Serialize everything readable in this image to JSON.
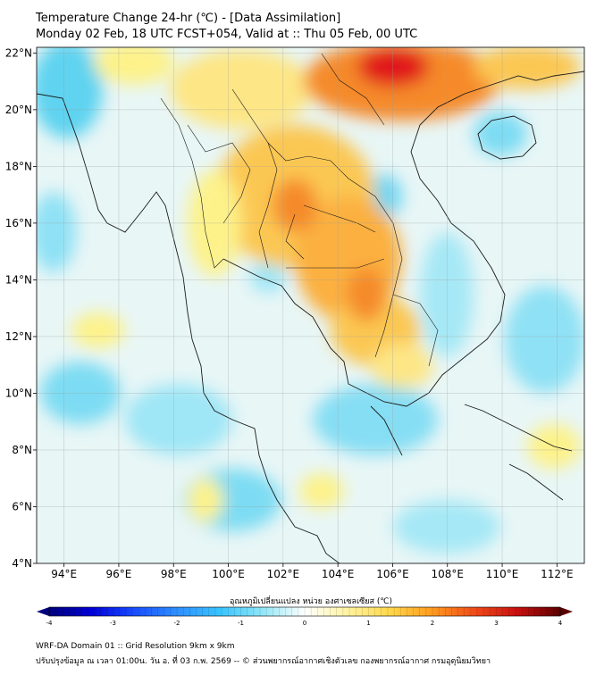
{
  "header": {
    "title": "Temperature Change 24-hr (℃) - [Data Assimilation]",
    "subtitle": "Monday 02 Feb, 18 UTC FCST+054, Valid at :: Thu 05 Feb, 00 UTC"
  },
  "map": {
    "lat_labels": [
      "22°N",
      "20°N",
      "18°N",
      "16°N",
      "14°N",
      "12°N",
      "10°N",
      "8°N",
      "6°N",
      "4°N"
    ],
    "lon_labels": [
      "94°E",
      "96°E",
      "98°E",
      "100°E",
      "102°E",
      "104°E",
      "106°E",
      "108°E",
      "110°E",
      "112°E"
    ],
    "lat_values": [
      22,
      20,
      18,
      16,
      14,
      12,
      10,
      8,
      6,
      4
    ],
    "lon_values": [
      94,
      96,
      98,
      100,
      102,
      104,
      106,
      108,
      110,
      112
    ],
    "lon_range": [
      93,
      113
    ],
    "lat_range": [
      4,
      22.2
    ],
    "field_colors": {
      "cool": "#5fd3f0",
      "neutral": "#eef6ee",
      "warm_light": "#fdf28a",
      "warm": "#fbb040",
      "hot": "#f26522",
      "very_hot": "#e1141b"
    }
  },
  "colorbar": {
    "label": "อุณหภูมิเปลี่ยนแปลง หน่วย องศาเซลเซียส (℃)",
    "tick_labels": [
      "-4",
      "-3",
      "-2",
      "-1",
      "0",
      "1",
      "2",
      "3",
      "4"
    ],
    "tick_values": [
      -4,
      -3,
      -2,
      -1,
      0,
      1,
      2,
      3,
      4
    ],
    "colors": [
      "#00007a",
      "#0000d8",
      "#1a4dff",
      "#2e8fff",
      "#37c4ff",
      "#8fe6f7",
      "#ffffff",
      "#fff3a0",
      "#ffd84a",
      "#ff9a1f",
      "#f04a18",
      "#c80f0f",
      "#5a0000"
    ]
  },
  "footer": {
    "line1": "WRF-DA Domain 01 :: Grid Resolution 9km x 9km",
    "line2": "ปรับปรุงข้อมูล ณ เวลา 01:00น. วัน อ. ที่ 03 ก.พ. 2569 -- © ส่วนพยากรณ์อากาศเชิงตัวเลข กองพยากรณ์อากาศ กรมอุตุนิยมวิทยา"
  }
}
